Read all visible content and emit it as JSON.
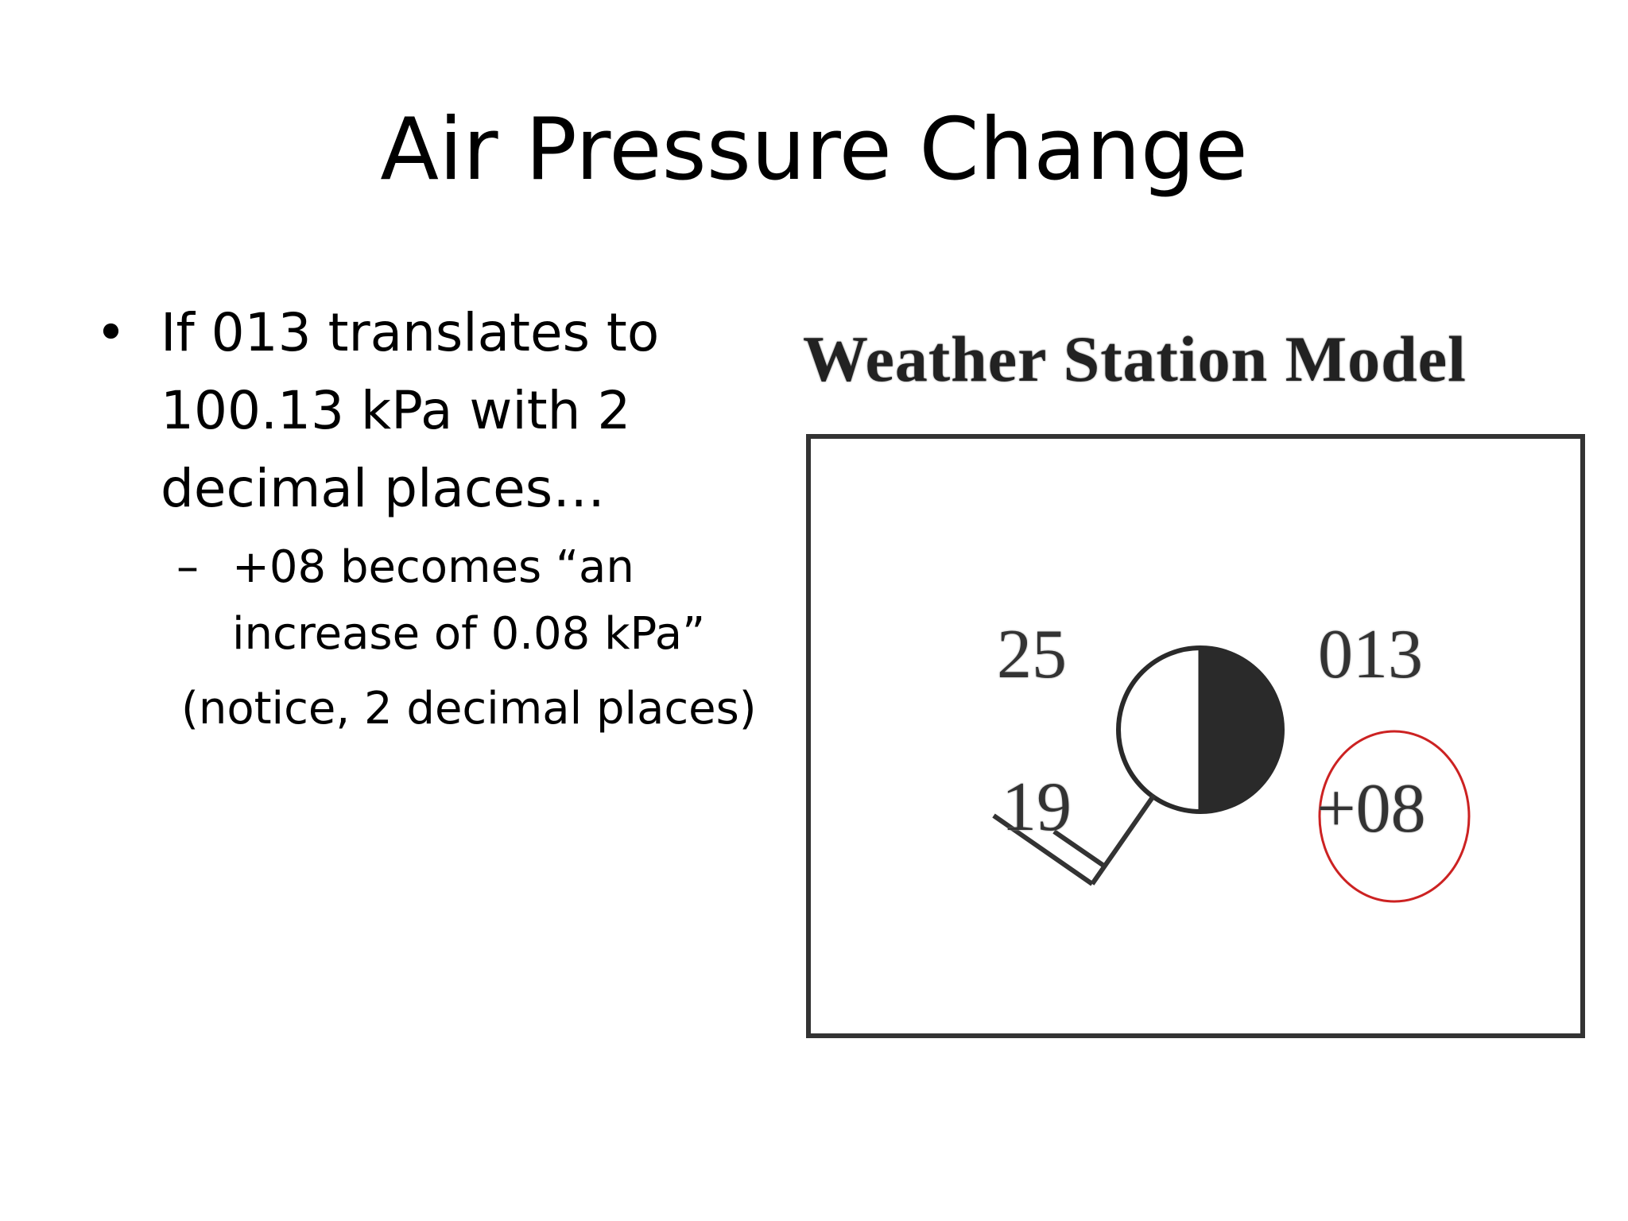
{
  "slide": {
    "title": "Air Pressure Change"
  },
  "bullets": {
    "main_marker": "•",
    "main_line1": "If 013 translates to",
    "main_line2": "100.13 kPa with 2",
    "main_line3": "decimal places…",
    "sub_marker": "–",
    "sub_line1": "+08 becomes “an",
    "sub_line2": "increase of 0.08  kPa”",
    "note": "(notice, 2 decimal places)"
  },
  "figure": {
    "title": "Weather Station Model",
    "temperature": "25",
    "dew_point": "19",
    "pressure": "013",
    "pressure_tendency": "+08",
    "cloud_cover_fraction": 0.5,
    "highlight_color": "#cc2222"
  }
}
